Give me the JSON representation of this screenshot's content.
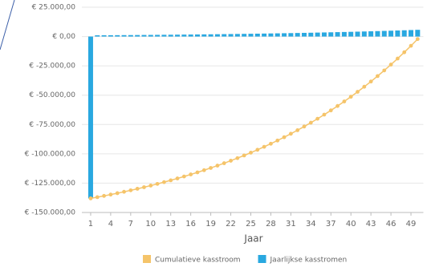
{
  "chart_data": {
    "type": "combo",
    "x_label": "Jaar",
    "categories": [
      1,
      null,
      null,
      4,
      null,
      null,
      7,
      null,
      null,
      10,
      null,
      null,
      13,
      null,
      null,
      16,
      null,
      null,
      19,
      null,
      null,
      22,
      null,
      null,
      25,
      null,
      null,
      28,
      null,
      null,
      31,
      null,
      null,
      34,
      null,
      null,
      37,
      null,
      null,
      40,
      null,
      null,
      43,
      null,
      null,
      46,
      null,
      null,
      49,
      null
    ],
    "series": [
      {
        "name": "Cumulatieve kasstroom",
        "type": "line",
        "color": "#f5c46a",
        "values": [
          -138000,
          -136950,
          -135862,
          -134735,
          -133568,
          -132358,
          -131105,
          -129807,
          -128462,
          -127069,
          -125625,
          -124129,
          -122580,
          -120975,
          -119312,
          -117589,
          -115804,
          -113955,
          -112039,
          -110054,
          -107998,
          -105868,
          -103661,
          -101375,
          -99007,
          -96553,
          -94011,
          -91377,
          -88649,
          -85822,
          -82894,
          -79860,
          -76717,
          -73461,
          -70088,
          -66593,
          -62972,
          -59221,
          -55335,
          -51309,
          -47138,
          -42817,
          -38341,
          -33703,
          -28898,
          -23921,
          -18764,
          -13422,
          -7887,
          -2153
        ]
      },
      {
        "name": "Jaarlijkse kasstromen",
        "type": "bar",
        "color": "#29a8e0",
        "values": [
          -138000,
          1050,
          1088,
          1127,
          1167,
          1210,
          1253,
          1298,
          1345,
          1393,
          1444,
          1496,
          1549,
          1605,
          1663,
          1723,
          1785,
          1849,
          1916,
          1985,
          2056,
          2130,
          2207,
          2286,
          2368,
          2454,
          2542,
          2634,
          2728,
          2827,
          2928,
          3034,
          3143,
          3256,
          3373,
          3495,
          3621,
          3751,
          3886,
          4026,
          4171,
          4321,
          4476,
          4638,
          4805,
          4977,
          5157,
          5342,
          5535,
          5734
        ]
      }
    ],
    "ylim": [
      -150000,
      25000
    ],
    "yticks": [
      {
        "value": 25000,
        "label": "€ 25.000,00"
      },
      {
        "value": 0,
        "label": "€ 0,00"
      },
      {
        "value": -25000,
        "label": "€ -25.000,00"
      },
      {
        "value": -50000,
        "label": "€ -50.000,00"
      },
      {
        "value": -75000,
        "label": "€ -75.000,00"
      },
      {
        "value": -100000,
        "label": "€ -100.000,00"
      },
      {
        "value": -125000,
        "label": "€ -125.000,00"
      },
      {
        "value": -150000,
        "label": "€ -150.000,00"
      }
    ],
    "grid": true,
    "legend": "bottom"
  }
}
